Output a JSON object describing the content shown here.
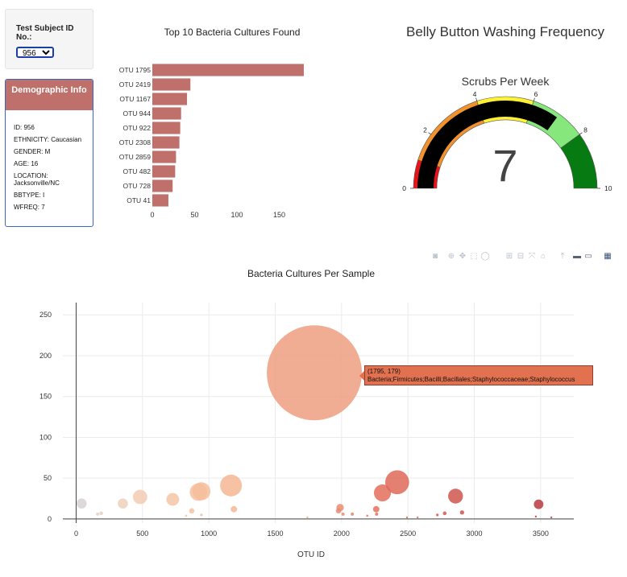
{
  "selector": {
    "label": "Test Subject ID No.:",
    "selected": "956"
  },
  "demographics": {
    "title": "Demographic Info",
    "rows": [
      "ID: 956",
      "ETHNICITY: Caucasian",
      "GENDER: M",
      "AGE: 16",
      "LOCATION: Jacksonville/NC",
      "BBTYPE: I",
      "WFREQ: 7"
    ]
  },
  "colors": {
    "bar": "#c0706a",
    "panel_border": "#3a68b8",
    "gauge_needle": "#000000"
  },
  "modebar_icons": [
    "camera-icon",
    "zoom-icon",
    "pan-icon",
    "box-select-icon",
    "lasso-icon",
    "zoom-in-icon",
    "zoom-out-icon",
    "autoscale-icon",
    "reset-axes-icon",
    "spike-lines-icon",
    "hover-closest-icon",
    "hover-compare-icon",
    "plotly-logo-icon"
  ],
  "chart_data": [
    {
      "type": "bar",
      "orientation": "horizontal",
      "title": "Top 10 Bacteria Cultures Found",
      "categories": [
        "OTU 1795",
        "OTU 2419",
        "OTU 1167",
        "OTU 944",
        "OTU 922",
        "OTU 2308",
        "OTU 2859",
        "OTU 482",
        "OTU 728",
        "OTU 41"
      ],
      "values": [
        179,
        45,
        41,
        34,
        33,
        32,
        28,
        27,
        24,
        19
      ],
      "xlim": [
        0,
        180
      ],
      "xticks": [
        0,
        50,
        100,
        150
      ],
      "grid": false
    },
    {
      "type": "gauge",
      "title": "Belly Button Washing Frequency",
      "subtitle": "Scrubs Per Week",
      "value": 7,
      "range": [
        0,
        10
      ],
      "ticks": [
        0,
        2,
        4,
        6,
        8,
        10
      ],
      "steps": [
        {
          "range": [
            0,
            1
          ],
          "color": "#e8141a"
        },
        {
          "range": [
            1,
            4
          ],
          "color": "#f2922c"
        },
        {
          "range": [
            4,
            6
          ],
          "color": "#fef232"
        },
        {
          "range": [
            6,
            8
          ],
          "color": "#86e77c"
        },
        {
          "range": [
            8,
            10
          ],
          "color": "#087a12"
        }
      ]
    },
    {
      "type": "scatter",
      "title": "Bacteria Cultures Per Sample",
      "xlabel": "OTU ID",
      "xlim": [
        -100,
        3750
      ],
      "ylim": [
        -5,
        265
      ],
      "xticks": [
        0,
        500,
        1000,
        1500,
        2000,
        2500,
        3000,
        3500
      ],
      "yticks": [
        0,
        50,
        100,
        150,
        200,
        250
      ],
      "grid": true,
      "hover": {
        "text": "(1795, 179)",
        "label": "Bacteria;Firmicutes;Bacilli;Bacillales;Staphylococcaceae;Staphylococcus"
      },
      "points": [
        {
          "x": 41,
          "y": 19
        },
        {
          "x": 162,
          "y": 6
        },
        {
          "x": 189,
          "y": 7
        },
        {
          "x": 352,
          "y": 19
        },
        {
          "x": 482,
          "y": 27
        },
        {
          "x": 728,
          "y": 24
        },
        {
          "x": 829,
          "y": 4
        },
        {
          "x": 871,
          "y": 10
        },
        {
          "x": 922,
          "y": 33
        },
        {
          "x": 944,
          "y": 34
        },
        {
          "x": 944,
          "y": 5
        },
        {
          "x": 1167,
          "y": 41
        },
        {
          "x": 1189,
          "y": 12
        },
        {
          "x": 1795,
          "y": 179
        },
        {
          "x": 1742,
          "y": 2
        },
        {
          "x": 1977,
          "y": 10
        },
        {
          "x": 1989,
          "y": 14
        },
        {
          "x": 2011,
          "y": 6
        },
        {
          "x": 2081,
          "y": 6
        },
        {
          "x": 2194,
          "y": 4
        },
        {
          "x": 2261,
          "y": 12
        },
        {
          "x": 2264,
          "y": 6
        },
        {
          "x": 2308,
          "y": 32
        },
        {
          "x": 2419,
          "y": 45
        },
        {
          "x": 2493,
          "y": 2
        },
        {
          "x": 2573,
          "y": 2
        },
        {
          "x": 2722,
          "y": 5
        },
        {
          "x": 2777,
          "y": 7
        },
        {
          "x": 2859,
          "y": 28
        },
        {
          "x": 2908,
          "y": 8
        },
        {
          "x": 3464,
          "y": 3
        },
        {
          "x": 3485,
          "y": 18
        },
        {
          "x": 3581,
          "y": 2
        }
      ]
    }
  ]
}
